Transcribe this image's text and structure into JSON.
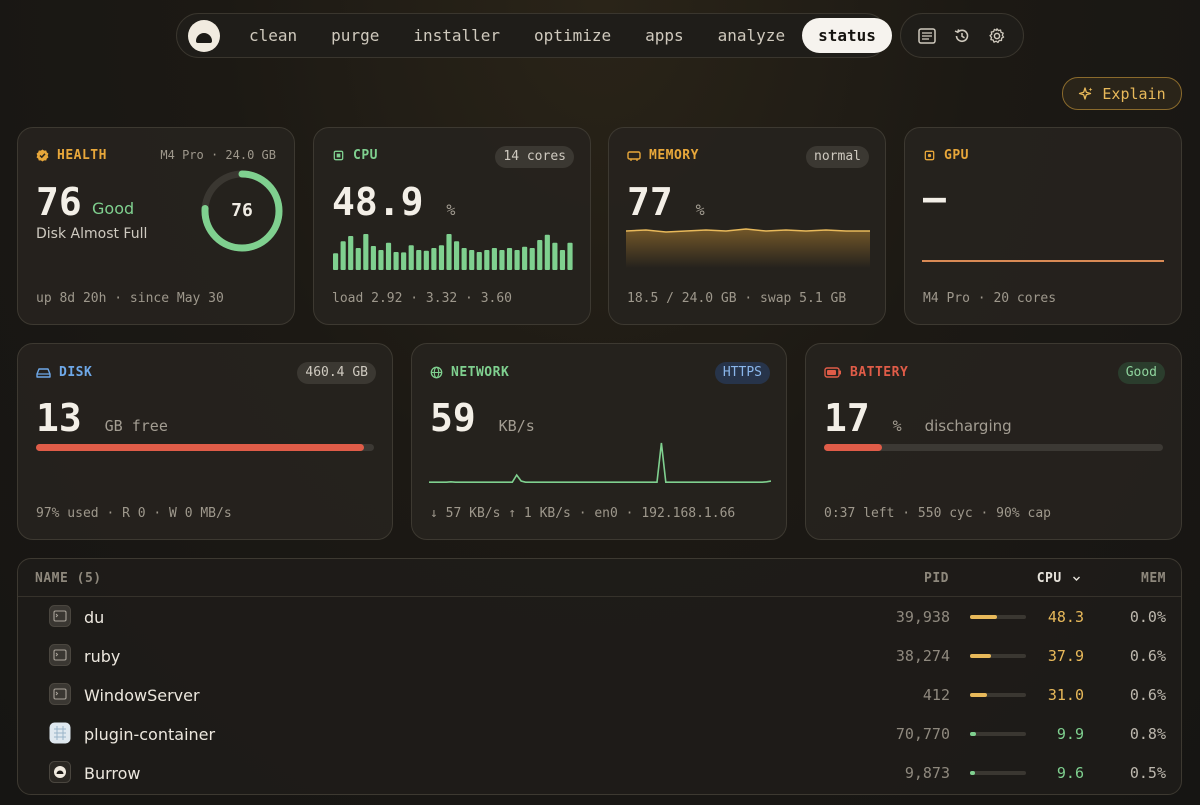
{
  "nav": {
    "tabs": [
      {
        "label": "clean",
        "active": false
      },
      {
        "label": "purge",
        "active": false
      },
      {
        "label": "installer",
        "active": false
      },
      {
        "label": "optimize",
        "active": false
      },
      {
        "label": "apps",
        "active": false
      },
      {
        "label": "analyze",
        "active": false
      },
      {
        "label": "status",
        "active": true
      }
    ],
    "tools": [
      "log-icon",
      "history-icon",
      "gear-icon"
    ]
  },
  "explain": {
    "label": "Explain",
    "icon": "sparkle-icon",
    "color": "#e8b95a"
  },
  "health": {
    "title": "HEALTH",
    "badge": "M4 Pro · 24.0 GB",
    "score": "76",
    "rating": "Good",
    "note": "Disk Almost Full",
    "ring_value": "76",
    "ring_fraction": 0.76,
    "footer": "up 8d 20h · since May 30",
    "color": "#e8a73a",
    "ring_color": "#7fd08f"
  },
  "cpu": {
    "title": "CPU",
    "badge": "14 cores",
    "value": "48.9",
    "unit": "%",
    "footer": "load 2.92 · 3.32 · 3.60",
    "color": "#7fd08f",
    "history": [
      0.42,
      0.72,
      0.85,
      0.55,
      0.9,
      0.6,
      0.5,
      0.68,
      0.45,
      0.44,
      0.62,
      0.5,
      0.48,
      0.55,
      0.62,
      0.9,
      0.72,
      0.55,
      0.5,
      0.45,
      0.5,
      0.55,
      0.5,
      0.55,
      0.5,
      0.58,
      0.55,
      0.75,
      0.88,
      0.68,
      0.5,
      0.68
    ]
  },
  "memory": {
    "title": "MEMORY",
    "badge": "normal",
    "value": "77",
    "unit": "%",
    "footer": "18.5 / 24.0 GB · swap 5.1 GB",
    "color": "#e8a73a"
  },
  "gpu": {
    "title": "GPU",
    "value": "–",
    "footer": "M4 Pro · 20 cores",
    "color": "#e8a73a"
  },
  "disk": {
    "title": "DISK",
    "badge": "460.4 GB",
    "value": "13",
    "unit": "GB free",
    "used_fraction": 0.97,
    "footer": "97% used · R 0 · W 0 MB/s",
    "color": "#6ea8e8"
  },
  "network": {
    "title": "NETWORK",
    "badge": "HTTPS",
    "value": "59",
    "unit": "KB/s",
    "footer": "↓ 57 KB/s  ↑ 1 KB/s · en0 · 192.168.1.66",
    "color": "#7fd08f",
    "history": [
      0.02,
      0.02,
      0.02,
      0.02,
      0.02,
      0.03,
      0.02,
      0.02,
      0.02,
      0.02,
      0.02,
      0.02,
      0.02,
      0.02,
      0.02,
      0.02,
      0.02,
      0.02,
      0.02,
      0.02,
      0.2,
      0.05,
      0.02,
      0.02,
      0.02,
      0.02,
      0.02,
      0.02,
      0.02,
      0.02,
      0.02,
      0.02,
      0.02,
      0.02,
      0.02,
      0.02,
      0.02,
      0.02,
      0.02,
      0.02,
      0.02,
      0.02,
      0.02,
      0.02,
      0.02,
      0.02,
      0.02,
      0.02,
      0.02,
      0.02,
      0.02,
      0.02,
      0.02,
      1.0,
      0.02,
      0.02,
      0.02,
      0.02,
      0.02,
      0.02,
      0.02,
      0.02,
      0.02,
      0.02,
      0.02,
      0.02,
      0.02,
      0.02,
      0.02,
      0.02,
      0.02,
      0.02,
      0.02,
      0.02,
      0.02,
      0.02,
      0.02,
      0.03,
      0.05
    ]
  },
  "battery": {
    "title": "BATTERY",
    "badge": "Good",
    "value": "17",
    "unit": "%",
    "status": "discharging",
    "fraction": 0.17,
    "footer": "0:37 left · 550 cyc · 90% cap",
    "color": "#e05c48",
    "badge_color": "#7fd08f"
  },
  "table": {
    "headers": {
      "name": "NAME (5)",
      "pid": "PID",
      "cpu": "CPU",
      "mem": "MEM"
    },
    "rows": [
      {
        "name": "du",
        "pid": "39,938",
        "cpu": "48.3",
        "mem": "0.0%",
        "cpu_fraction": 0.483,
        "icon": "terminal-icon"
      },
      {
        "name": "ruby",
        "pid": "38,274",
        "cpu": "37.9",
        "mem": "0.6%",
        "cpu_fraction": 0.379,
        "icon": "terminal-icon"
      },
      {
        "name": "WindowServer",
        "pid": "412",
        "cpu": "31.0",
        "mem": "0.6%",
        "cpu_fraction": 0.31,
        "icon": "terminal-icon"
      },
      {
        "name": "plugin-container",
        "pid": "70,770",
        "cpu": "9.9",
        "mem": "0.8%",
        "cpu_fraction": 0.099,
        "icon": "app-icon"
      },
      {
        "name": "Burrow",
        "pid": "9,873",
        "cpu": "9.6",
        "mem": "0.5%",
        "cpu_fraction": 0.096,
        "icon": "burrow-icon"
      }
    ]
  }
}
